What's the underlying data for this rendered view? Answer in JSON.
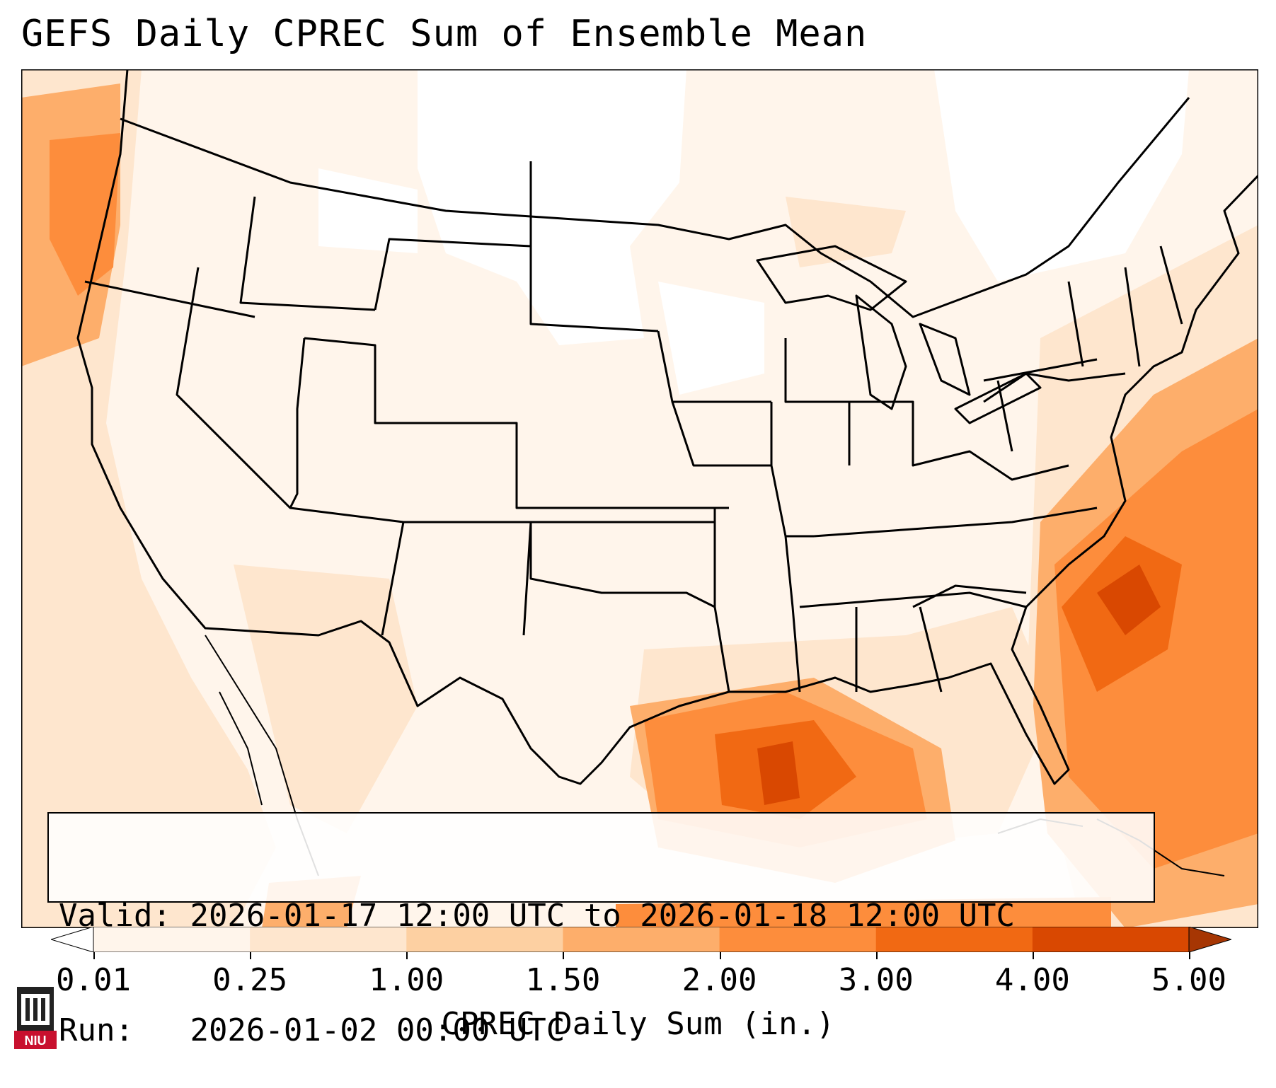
{
  "header": {
    "title": "GEFS Daily CPREC Sum of Ensemble Mean"
  },
  "info_box": {
    "valid_label": "Valid:",
    "valid_value": "2026-01-17 12:00 UTC to 2026-01-18 12:00 UTC",
    "run_label": "Run:",
    "run_value": "2026-01-02 00:00 UTC"
  },
  "colorbar": {
    "title": "CPREC Daily Sum (in.)",
    "ticks": [
      "0.01",
      "0.25",
      "1.00",
      "1.50",
      "2.00",
      "3.00",
      "4.00",
      "5.00"
    ],
    "colors": [
      "#fff5eb",
      "#fee6ce",
      "#fdd0a2",
      "#fdae6b",
      "#fd8d3c",
      "#f16913",
      "#d94801",
      "#a63603"
    ],
    "extend": "both"
  },
  "map": {
    "domain": "Continental United States",
    "projection": "Lambert conformal",
    "max_precip_regions": [
      "western Atlantic off Carolinas",
      "north-central Gulf of Mexico"
    ]
  },
  "logo": {
    "text": "NIU"
  }
}
